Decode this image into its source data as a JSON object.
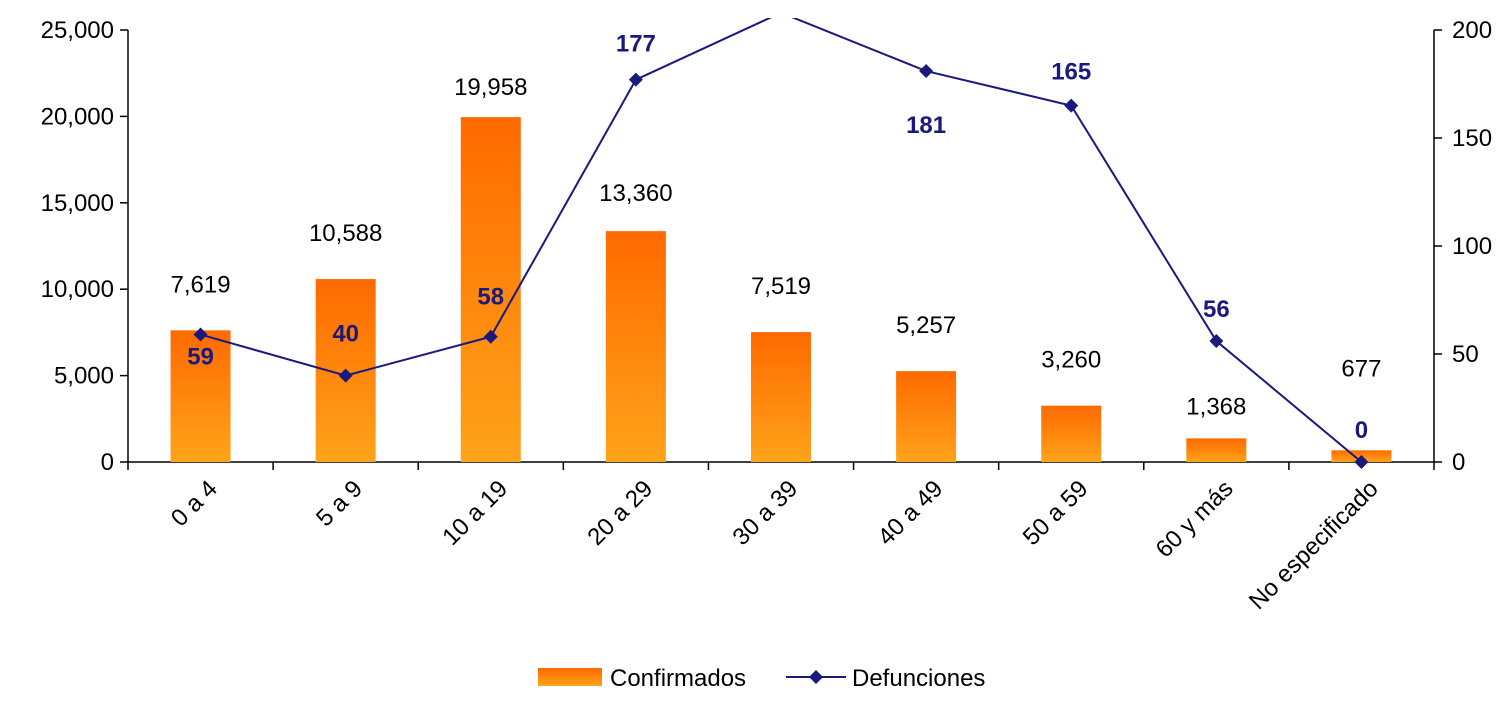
{
  "chart_data": {
    "type": "bar",
    "categories": [
      "0 a 4",
      "5 a 9",
      "10 a 19",
      "20 a 29",
      "30 a 39",
      "40 a 49",
      "50 a 59",
      "60 y más",
      "No especificado"
    ],
    "series": [
      {
        "name": "Confirmados",
        "type": "bar",
        "axis": "left",
        "color": "#ff8c00",
        "values": [
          7619,
          10588,
          19958,
          13360,
          7519,
          5257,
          3260,
          1368,
          677
        ],
        "labels": [
          "7,619",
          "10,588",
          "19,958",
          "13,360",
          "7,519",
          "5,257",
          "3,260",
          "1,368",
          "677"
        ]
      },
      {
        "name": "Defunciones",
        "type": "line",
        "axis": "right",
        "color": "#1a1a7e",
        "marker": "diamond",
        "values": [
          59,
          40,
          58,
          177,
          208,
          181,
          165,
          56,
          0
        ],
        "labels": [
          "59",
          "40",
          "58",
          "177",
          "",
          "181",
          "165",
          "56",
          "0"
        ]
      }
    ],
    "y_left": {
      "ylim": [
        0,
        25000
      ],
      "ticks": [
        0,
        5000,
        10000,
        15000,
        20000,
        25000
      ],
      "tick_labels": [
        "0",
        "5,000",
        "10,000",
        "15,000",
        "20,000",
        "25,000"
      ]
    },
    "y_right": {
      "ylim": [
        0,
        200
      ],
      "ticks": [
        0,
        50,
        100,
        150,
        200
      ],
      "tick_labels": [
        "0",
        "50",
        "100",
        "150",
        "200"
      ]
    },
    "grid": false,
    "legend": {
      "position": "bottom-center",
      "entries": [
        "Confirmados",
        "Defunciones"
      ]
    }
  }
}
